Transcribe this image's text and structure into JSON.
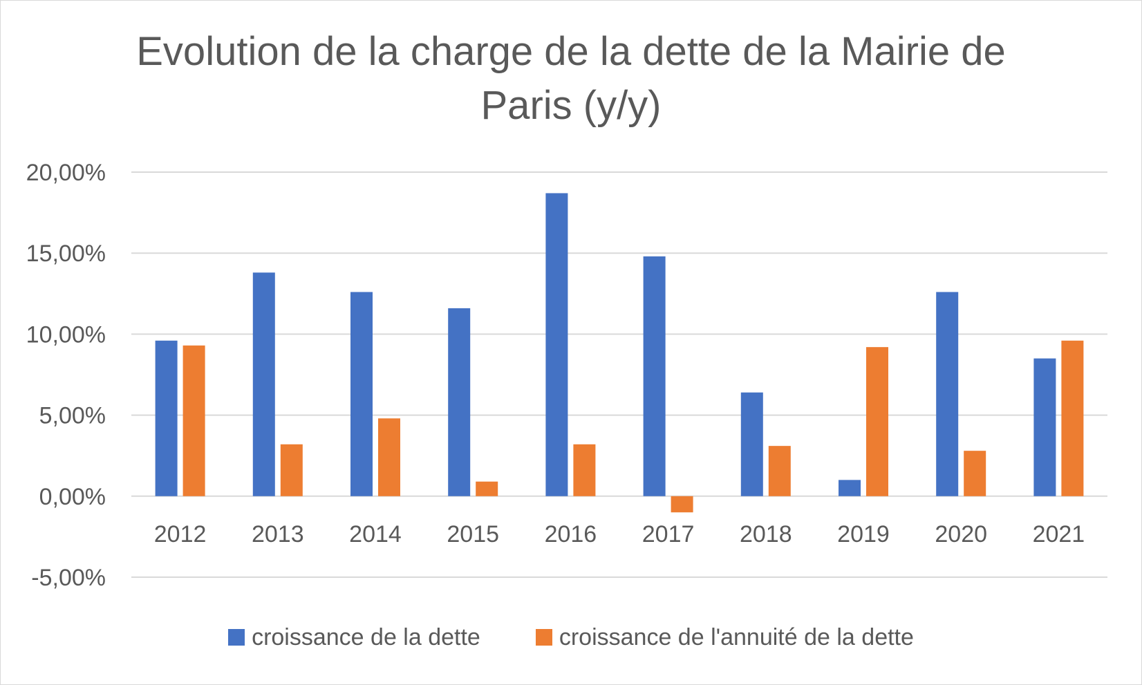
{
  "chart_data": {
    "type": "bar",
    "title": "Evolution de la charge de la dette de la Mairie de Paris (y/y)",
    "categories": [
      "2012",
      "2013",
      "2014",
      "2015",
      "2016",
      "2017",
      "2018",
      "2019",
      "2020",
      "2021"
    ],
    "series": [
      {
        "name": "croissance de la dette",
        "color": "#4472c4",
        "values": [
          9.6,
          13.8,
          12.6,
          11.6,
          18.7,
          14.8,
          6.4,
          1.0,
          12.6,
          8.5
        ]
      },
      {
        "name": "croissance de l'annuité de la dette",
        "color": "#ed7d31",
        "values": [
          9.3,
          3.2,
          4.8,
          0.9,
          3.2,
          -1.0,
          3.1,
          9.2,
          2.8,
          9.6
        ]
      }
    ],
    "y_ticks": [
      20,
      15,
      10,
      5,
      0,
      -5
    ],
    "y_tick_labels": [
      "20,00%",
      "15,00%",
      "10,00%",
      "5,00%",
      "0,00%",
      "-5,00%"
    ],
    "ylim": [
      -5,
      20
    ],
    "grid": true,
    "legend_position": "bottom"
  }
}
